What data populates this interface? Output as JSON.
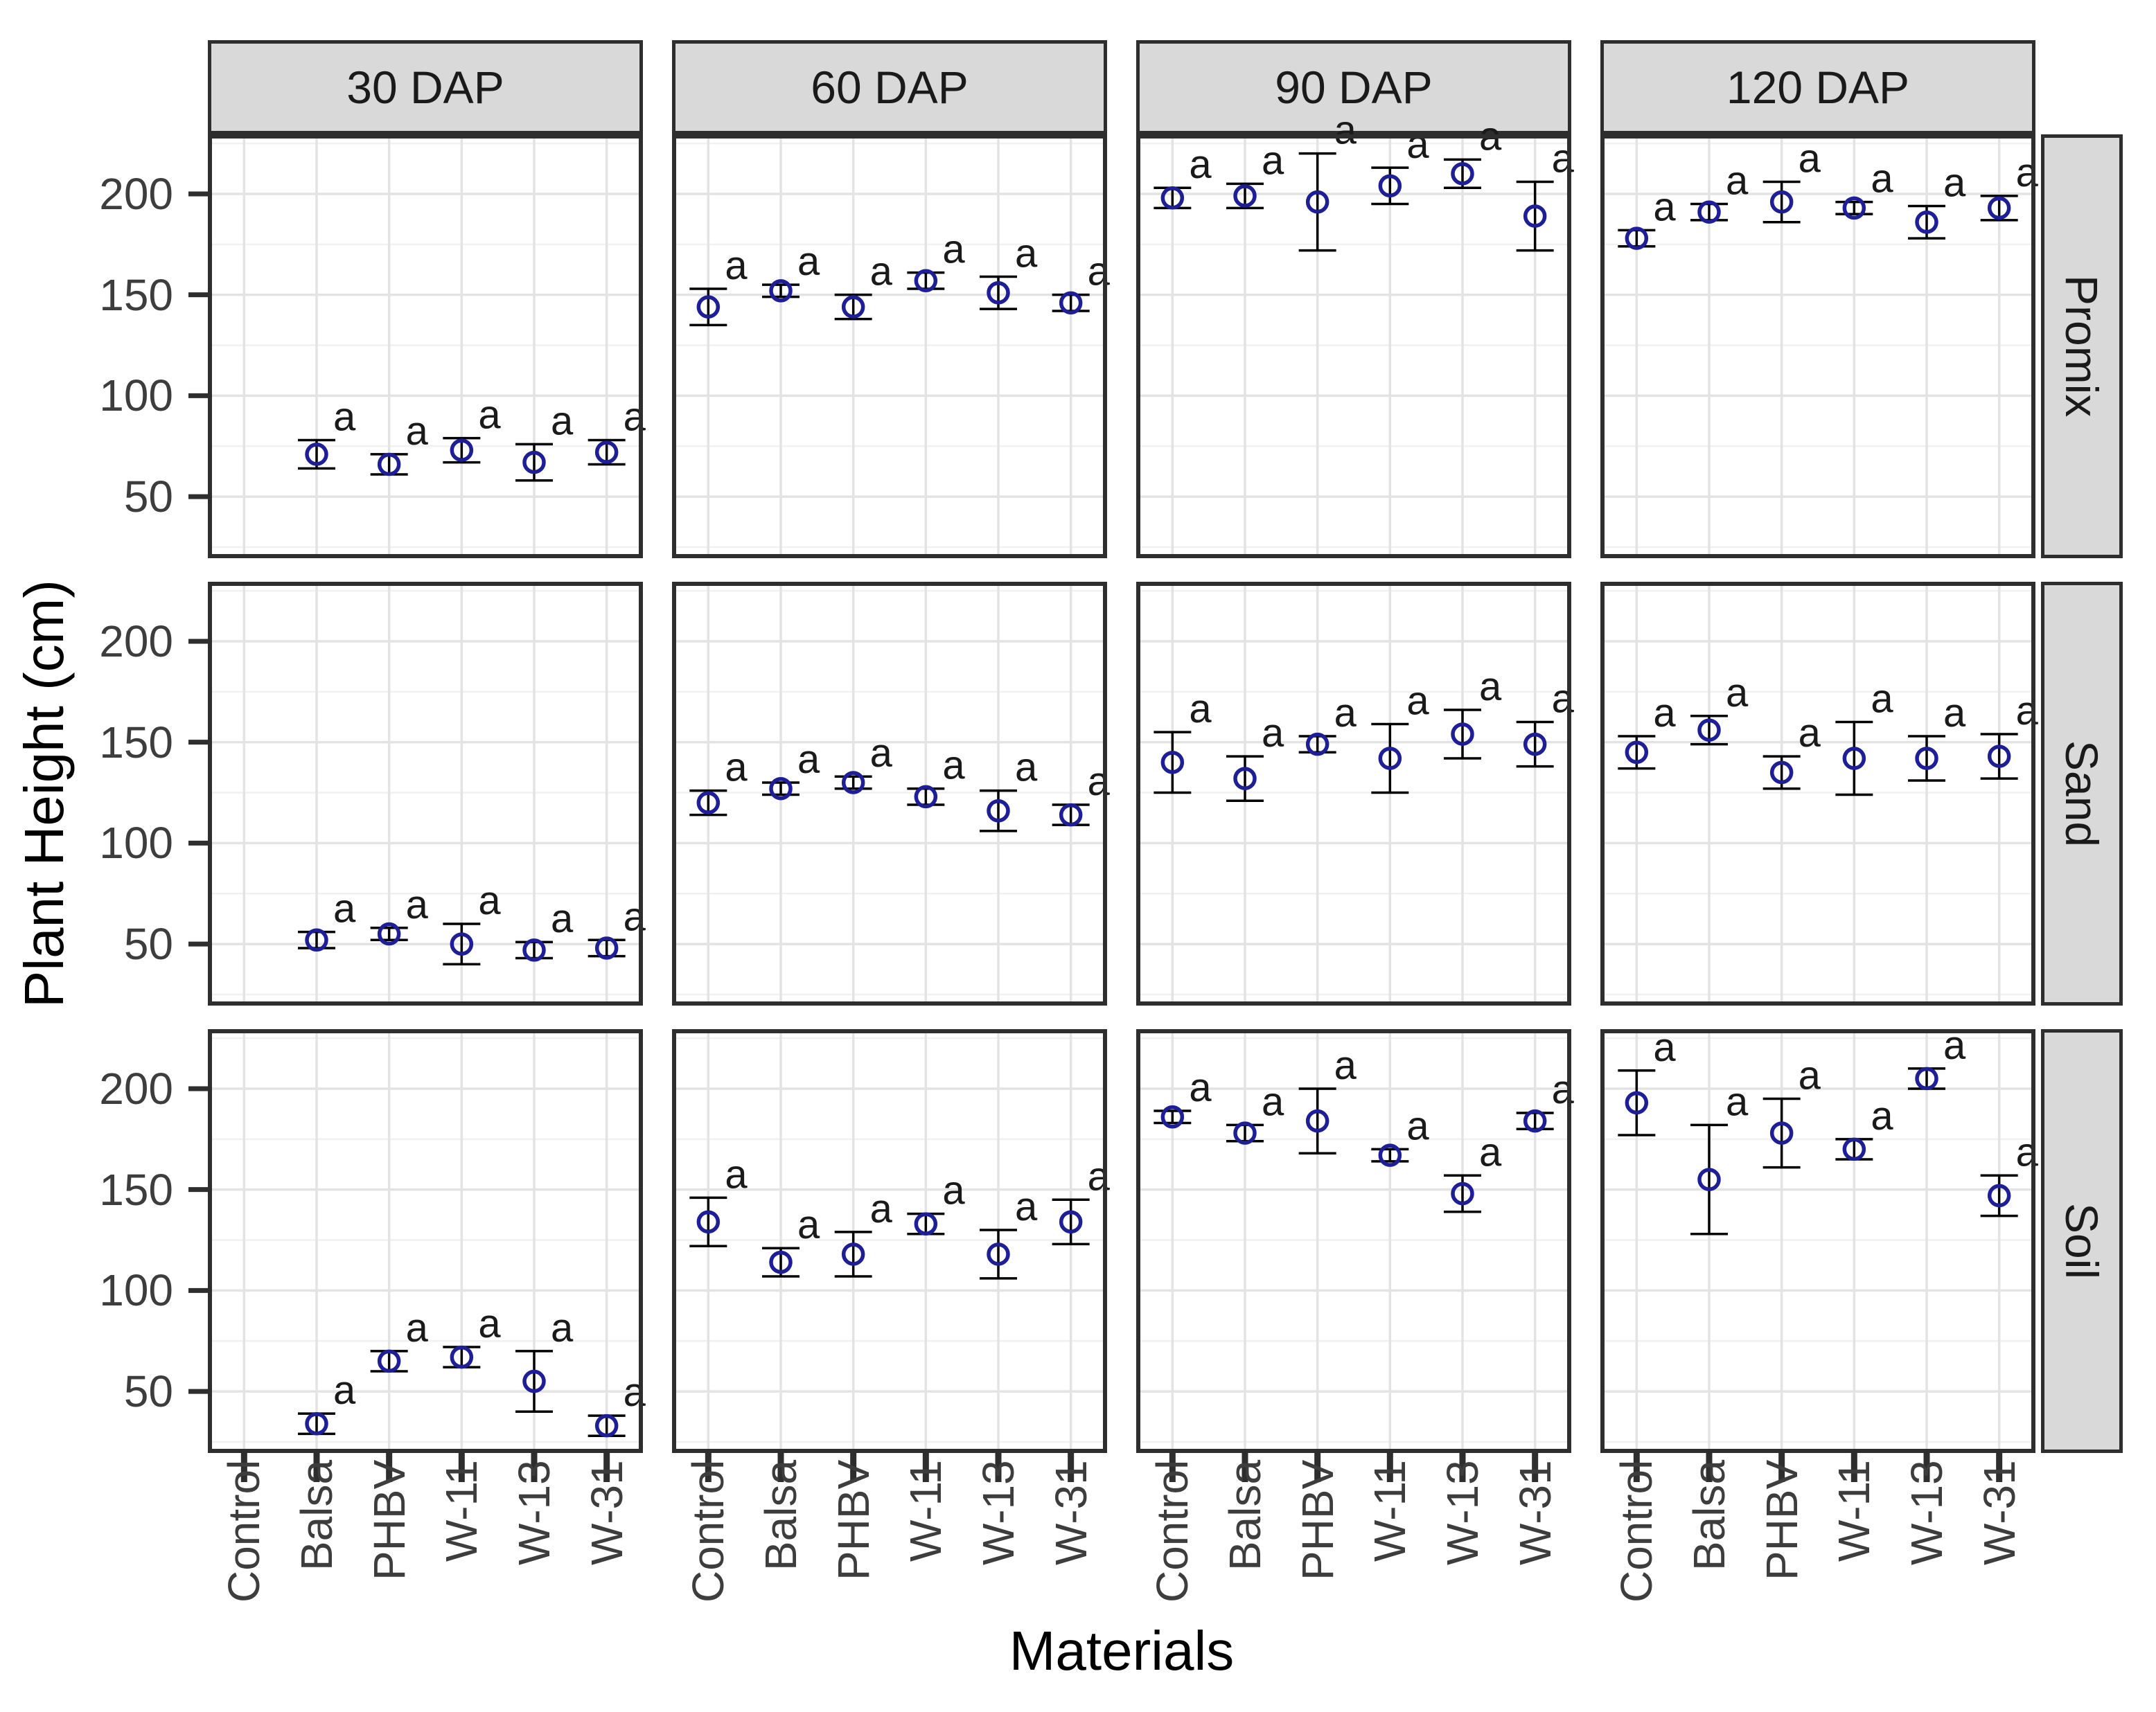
{
  "figure": {
    "y_axis_title": "Plant Height (cm)",
    "x_axis_title": "Materials"
  },
  "chart_data": {
    "type": "scatter",
    "subtype": "faceted means with error bars",
    "title": "",
    "xlabel": "Materials",
    "ylabel": "Plant Height (cm)",
    "x_categories": [
      "Control",
      "Balsa",
      "PHBV",
      "W-11",
      "W-13",
      "W-31"
    ],
    "col_facets": [
      "30 DAP",
      "60 DAP",
      "90 DAP",
      "120 DAP"
    ],
    "row_facets": [
      "Promix",
      "Sand",
      "Soil"
    ],
    "y_ticks": [
      50,
      100,
      150,
      200
    ],
    "ylim": [
      19.5,
      229.5
    ],
    "grid": "major+minor horizontal, major vertical at categories",
    "legend": "none",
    "point_label": "a",
    "series": [
      {
        "row": 0,
        "col": 0,
        "row_label": "Promix",
        "col_label": "30 DAP",
        "means": [
          null,
          71,
          66,
          73,
          67,
          72
        ],
        "errors": [
          null,
          7,
          5,
          6,
          9,
          6
        ]
      },
      {
        "row": 0,
        "col": 1,
        "row_label": "Promix",
        "col_label": "60 DAP",
        "means": [
          144,
          152,
          144,
          157,
          151,
          146
        ],
        "errors": [
          9,
          3,
          6,
          4,
          8,
          4
        ]
      },
      {
        "row": 0,
        "col": 2,
        "row_label": "Promix",
        "col_label": "90 DAP",
        "means": [
          198,
          199,
          196,
          204,
          210,
          189
        ],
        "errors": [
          5,
          6,
          24,
          9,
          7,
          17
        ]
      },
      {
        "row": 0,
        "col": 3,
        "row_label": "Promix",
        "col_label": "120 DAP",
        "means": [
          178,
          191,
          196,
          193,
          186,
          193
        ],
        "errors": [
          4,
          4,
          10,
          3,
          8,
          6
        ]
      },
      {
        "row": 1,
        "col": 0,
        "row_label": "Sand",
        "col_label": "30 DAP",
        "means": [
          null,
          52,
          55,
          50,
          47,
          48
        ],
        "errors": [
          null,
          4,
          3,
          10,
          4,
          4
        ]
      },
      {
        "row": 1,
        "col": 1,
        "row_label": "Sand",
        "col_label": "60 DAP",
        "means": [
          120,
          127,
          130,
          123,
          116,
          114
        ],
        "errors": [
          6,
          3,
          3,
          4,
          10,
          5
        ]
      },
      {
        "row": 1,
        "col": 2,
        "row_label": "Sand",
        "col_label": "90 DAP",
        "means": [
          140,
          132,
          149,
          142,
          154,
          149
        ],
        "errors": [
          15,
          11,
          4,
          17,
          12,
          11
        ]
      },
      {
        "row": 1,
        "col": 3,
        "row_label": "Sand",
        "col_label": "120 DAP",
        "means": [
          145,
          156,
          135,
          142,
          142,
          143
        ],
        "errors": [
          8,
          7,
          8,
          18,
          11,
          11
        ]
      },
      {
        "row": 2,
        "col": 0,
        "row_label": "Soil",
        "col_label": "30 DAP",
        "means": [
          null,
          34,
          65,
          67,
          55,
          33
        ],
        "errors": [
          null,
          5,
          5,
          5,
          15,
          5
        ]
      },
      {
        "row": 2,
        "col": 1,
        "row_label": "Soil",
        "col_label": "60 DAP",
        "means": [
          134,
          114,
          118,
          133,
          118,
          134
        ],
        "errors": [
          12,
          7,
          11,
          5,
          12,
          11
        ]
      },
      {
        "row": 2,
        "col": 2,
        "row_label": "Soil",
        "col_label": "90 DAP",
        "means": [
          186,
          178,
          184,
          167,
          148,
          184
        ],
        "errors": [
          3,
          4,
          16,
          3,
          9,
          4
        ]
      },
      {
        "row": 2,
        "col": 3,
        "row_label": "Soil",
        "col_label": "120 DAP",
        "means": [
          193,
          155,
          178,
          170,
          205,
          147
        ],
        "errors": [
          16,
          27,
          17,
          5,
          5,
          10
        ]
      }
    ]
  },
  "style": {
    "point_color": "#1e1e96",
    "errorbar_color": "#000000",
    "sig_label_color": "#1a1a1a",
    "strip_bg": "#d9d9d9",
    "panel_border": "#2e2e2e",
    "grid_major": "#e3e3e3",
    "grid_minor": "#f1f1f1",
    "tick_color": "#2e2e2e",
    "tick_label_color": "#3d3d3d"
  }
}
